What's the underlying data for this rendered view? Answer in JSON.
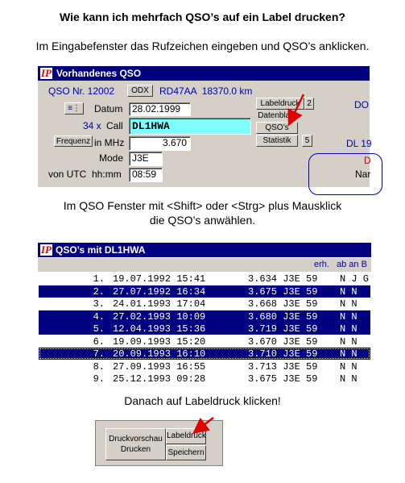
{
  "title": "Wie kann ich mehrfach QSO’s auf ein Label drucken?",
  "intro": "Im Eingabefenster das Rufzeichen eingeben und QSO’s anklicken.",
  "window1": {
    "logo": "IP",
    "title": "Vorhandenes QSO",
    "qso_nr": "QSO Nr. 12002",
    "odx": "ODX",
    "distance": "RD47AA  18370.0 km",
    "datum_label": "Datum",
    "datum": "28.02.1999",
    "count": "34 x",
    "call_label": "Call",
    "call": "DL1HWA",
    "frequenz": "Frequenz",
    "mhz_label": "in MHz",
    "mhz": "3.670",
    "mode_label": "Mode",
    "mode": "J3E",
    "utc_label": "von UTC  hh:mm",
    "utc": "08:59",
    "labeldruck": "Labeldruck",
    "labeldruck_num": "2",
    "datenblatt": "Datenblatt",
    "qsos": "QSO’s",
    "statistik": "Statistik",
    "statistik_num": "5",
    "right_1": "DO",
    "right_2": "DL 19",
    "right_3": "D",
    "right_4": "Nar"
  },
  "step2": [
    "Im QSO Fenster mit <Shift> oder <Strg> plus Mausklick",
    "die QSO’s anwählen."
  ],
  "window2": {
    "logo": "IP",
    "title": "QSO’s mit DL1HWA",
    "headers": [
      "erh.",
      "ab an B"
    ],
    "rows": [
      [
        "1.",
        "19.07.1992 15:41",
        "3.634 J3E 59",
        "N J G"
      ],
      [
        "2.",
        "27.07.1992 16:34",
        "3.675 J3E 59",
        "N N"
      ],
      [
        "3.",
        "24.01.1993 17:04",
        "3.668 J3E 59",
        "N N"
      ],
      [
        "4.",
        "27.02.1993 10:09",
        "3.680 J3E 59",
        "N N"
      ],
      [
        "5.",
        "12.04.1993 15:36",
        "3.719 J3E 59",
        "N N"
      ],
      [
        "6.",
        "19.09.1993 15:20",
        "3.670 J3E 59",
        "N N"
      ],
      [
        "7.",
        "20.09.1993 16:10",
        "3.710 J3E 59",
        "N N"
      ],
      [
        "8.",
        "27.09.1993 16:55",
        "3.713 J3E 59",
        "N N"
      ],
      [
        "9.",
        "25.12.1993 09:28",
        "3.675 J3E 59",
        "N N"
      ]
    ],
    "selected": [
      1,
      3,
      4,
      6
    ]
  },
  "step3": "Danach auf Labeldruck klicken!",
  "window3": {
    "druckvorschau": "Druckvorschau",
    "drucken": "Drucken",
    "labeldruck": "Labeldruck",
    "speichern": "Speichern"
  }
}
